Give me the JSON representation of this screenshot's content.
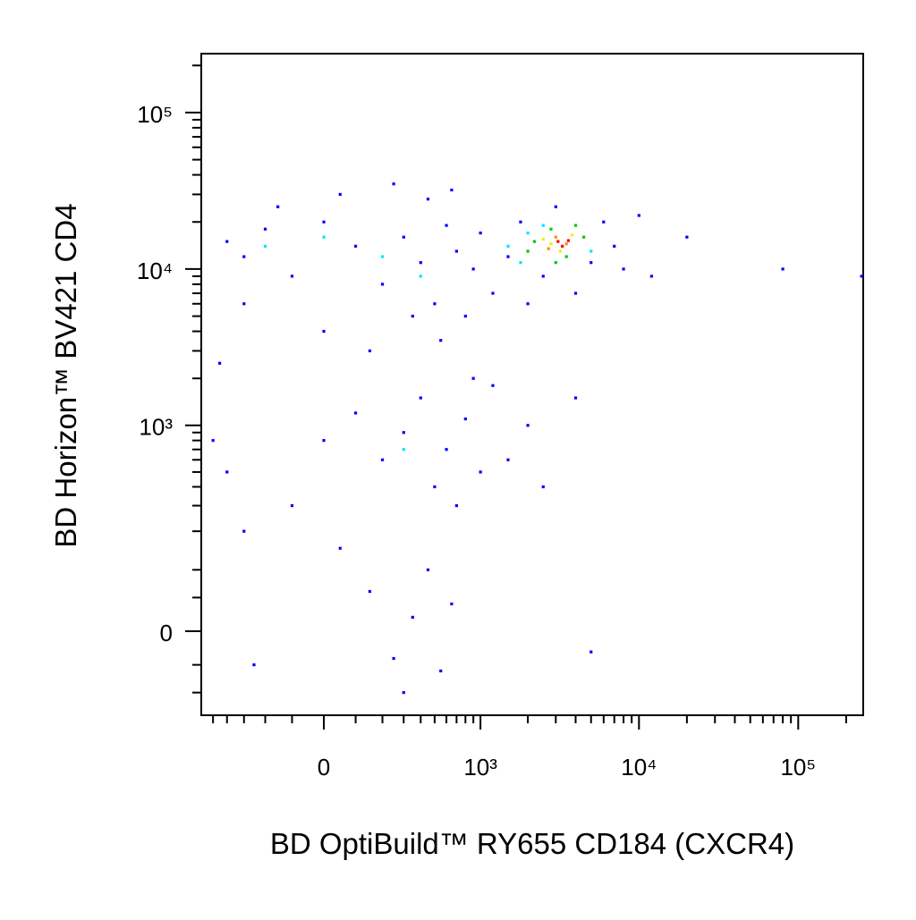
{
  "chart_data": {
    "type": "scatter",
    "xlabel": "BD OptiBuild™ RY655 CD184 (CXCR4)",
    "ylabel": "BD Horizon™ BV421 CD4",
    "xscale": "biexponential",
    "yscale": "biexponential",
    "xlim": [
      -600,
      256000
    ],
    "ylim": [
      -153,
      238000
    ],
    "xticks": [
      0,
      {
        "value": 1000,
        "label": "10³"
      },
      {
        "value": 10000,
        "label": "10⁴"
      },
      {
        "value": 100000,
        "label": "10⁵"
      }
    ],
    "yticks": [
      0,
      {
        "value": 1000,
        "label": "10³"
      },
      {
        "value": 10000,
        "label": "10⁴"
      },
      {
        "value": 100000,
        "label": "10⁵"
      }
    ],
    "xminorticks": [
      -500,
      -400,
      -300,
      -200,
      -100,
      100,
      200,
      300,
      400,
      500,
      600,
      700,
      800,
      900,
      2000,
      3000,
      4000,
      5000,
      6000,
      7000,
      8000,
      9000,
      20000,
      30000,
      40000,
      50000,
      60000,
      70000,
      80000,
      90000,
      200000
    ],
    "yminorticks": [
      -100,
      -50,
      50,
      100,
      200,
      300,
      400,
      500,
      600,
      700,
      800,
      900,
      2000,
      3000,
      4000,
      5000,
      6000,
      7000,
      8000,
      9000,
      20000,
      30000,
      40000,
      50000,
      60000,
      70000,
      80000,
      90000,
      200000
    ],
    "series": [
      {
        "color": "#0000ff",
        "x": [
          -400,
          -300,
          -200,
          -100,
          0,
          100,
          200,
          300,
          400,
          500,
          600,
          700,
          800,
          900,
          1000,
          1200,
          1500,
          1800,
          2000,
          2500,
          3000,
          4000,
          5000,
          6000,
          7000,
          8000,
          10000,
          12000,
          20000,
          80000,
          250000,
          -300,
          0,
          150,
          350,
          550,
          -150,
          50,
          250,
          450,
          650,
          -450,
          0,
          100,
          200,
          300,
          400,
          500,
          600,
          700,
          800,
          1000,
          -100,
          50,
          150,
          250,
          350,
          450,
          550,
          650,
          -300,
          -250,
          300,
          1500,
          2000,
          4000,
          2500,
          5000,
          -400,
          -500,
          900,
          1200
        ],
        "values": [
          15000,
          12000,
          18000,
          9000,
          20000,
          14000,
          8000,
          16000,
          11000,
          6000,
          19000,
          13000,
          5000,
          10000,
          17000,
          7000,
          12000,
          20000,
          6000,
          9000,
          25000,
          7000,
          11000,
          20000,
          14000,
          10000,
          22000,
          9000,
          16000,
          10000,
          9000,
          6000,
          4000,
          3000,
          5000,
          3500,
          25000,
          30000,
          35000,
          28000,
          32000,
          2500,
          800,
          1200,
          600,
          900,
          1500,
          400,
          700,
          300,
          1100,
          500,
          300,
          150,
          60,
          -40,
          20,
          100,
          -60,
          40,
          200,
          -50,
          -100,
          600,
          1000,
          1500,
          400,
          -30,
          500,
          800,
          2000,
          1800
        ]
      },
      {
        "color": "#00e5ff",
        "x": [
          -200,
          0,
          200,
          400,
          1500,
          2000,
          1800,
          2500,
          5000,
          300
        ],
        "values": [
          14000,
          16000,
          12000,
          9000,
          14000,
          17000,
          11000,
          19000,
          13000,
          700
        ]
      },
      {
        "color": "#00c800",
        "x": [
          2200,
          2800,
          3500,
          4500,
          2000,
          4000,
          3000
        ],
        "values": [
          15000,
          18000,
          12000,
          16000,
          13000,
          19000,
          11000
        ]
      },
      {
        "color": "#f0f000",
        "x": [
          2500,
          3200,
          3800,
          2800
        ],
        "values": [
          15500,
          13000,
          16500,
          14500
        ]
      },
      {
        "color": "#ff8c00",
        "x": [
          3000,
          3500,
          2700
        ],
        "values": [
          16000,
          14500,
          13500
        ]
      },
      {
        "color": "#ff0000",
        "x": [
          3100,
          3300,
          3600
        ],
        "values": [
          15000,
          14000,
          15200
        ]
      }
    ]
  }
}
